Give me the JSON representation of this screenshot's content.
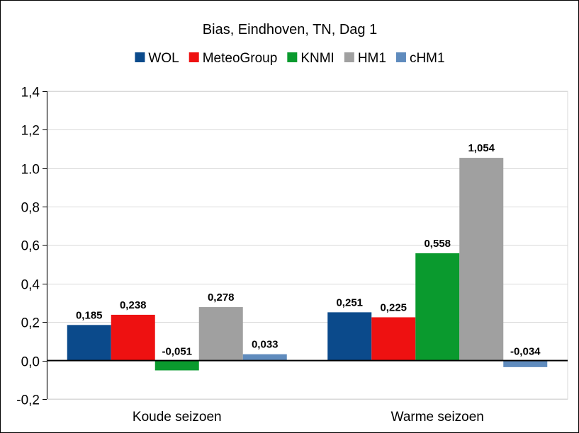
{
  "chart_data": {
    "type": "bar",
    "title": "Bias, Eindhoven, TN, Dag 1",
    "categories": [
      "Koude seizoen",
      "Warme seizoen"
    ],
    "series": [
      {
        "name": "WOL",
        "color": "#0b4a8b",
        "values": [
          0.185,
          0.251
        ],
        "labels": [
          "0,185",
          "0,251"
        ]
      },
      {
        "name": "MeteoGroup",
        "color": "#ee1111",
        "values": [
          0.238,
          0.225
        ],
        "labels": [
          "0,238",
          "0,225"
        ]
      },
      {
        "name": "KNMI",
        "color": "#0a9a2e",
        "values": [
          -0.051,
          0.558
        ],
        "labels": [
          "-0,051",
          "0,558"
        ]
      },
      {
        "name": "HM1",
        "color": "#a0a0a0",
        "values": [
          0.278,
          1.054
        ],
        "labels": [
          "0,278",
          "1,054"
        ]
      },
      {
        "name": "cHM1",
        "color": "#5f8bbd",
        "values": [
          0.033,
          -0.034
        ],
        "labels": [
          "0,033",
          "-0,034"
        ]
      }
    ],
    "ylim": [
      -0.2,
      1.4
    ],
    "yticks": [
      1.4,
      1.2,
      1.0,
      0.8,
      0.6,
      0.4,
      0.2,
      0.0,
      -0.2
    ],
    "ytick_labels": [
      "1,4",
      "1,2",
      "1.0",
      "0,8",
      "0,6",
      "0,4",
      "0,2",
      "0,0",
      "-0,2"
    ],
    "grid": true,
    "legend": "top-center"
  }
}
